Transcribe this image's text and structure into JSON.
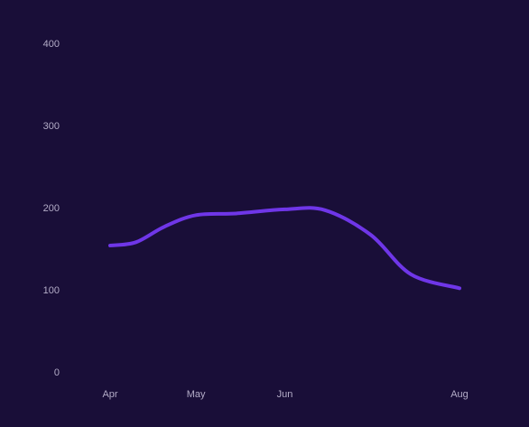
{
  "chart_data": {
    "type": "line",
    "title": "",
    "xlabel": "",
    "ylabel": "",
    "categories": [
      "Apr",
      "May",
      "Jun",
      "Aug"
    ],
    "x_dates": [
      "2024-04-01",
      "2024-05-01",
      "2024-06-01",
      "2024-08-01"
    ],
    "yticks": [
      0,
      100,
      200,
      300,
      400
    ],
    "ylim": [
      0,
      400
    ],
    "grid": false,
    "legend": "none",
    "series": [
      {
        "x": [
          "2024-04-01",
          "2024-04-10",
          "2024-04-20",
          "2024-05-01",
          "2024-05-15",
          "2024-06-01",
          "2024-06-15",
          "2024-07-01",
          "2024-07-15",
          "2024-08-01"
        ],
        "values": [
          155,
          159,
          178,
          192,
          194,
          199,
          198,
          168,
          120,
          103
        ],
        "color": "#6f36e8"
      }
    ]
  },
  "colors": {
    "background": "#190e38",
    "line": "#6f36e8",
    "tick_text": "#b3acc7"
  }
}
